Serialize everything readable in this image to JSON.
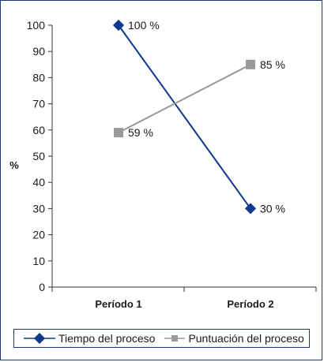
{
  "chart_data": {
    "type": "line",
    "categories": [
      "Período 1",
      "Período 2"
    ],
    "series": [
      {
        "name": "Tiempo del proceso",
        "values": [
          100,
          30
        ],
        "labels": [
          "100 %",
          "30 %"
        ],
        "color": "#0d3a8c",
        "marker": "diamond"
      },
      {
        "name": "Puntuación del proceso",
        "values": [
          59,
          85
        ],
        "labels": [
          "59 %",
          "85 %"
        ],
        "color": "#999999",
        "marker": "square"
      }
    ],
    "ylabel": "%",
    "ylim": [
      0,
      100
    ],
    "yticks": [
      "0",
      "10",
      "20",
      "30",
      "40",
      "50",
      "60",
      "70",
      "80",
      "90",
      "100"
    ],
    "grid": false,
    "legend_position": "bottom"
  }
}
